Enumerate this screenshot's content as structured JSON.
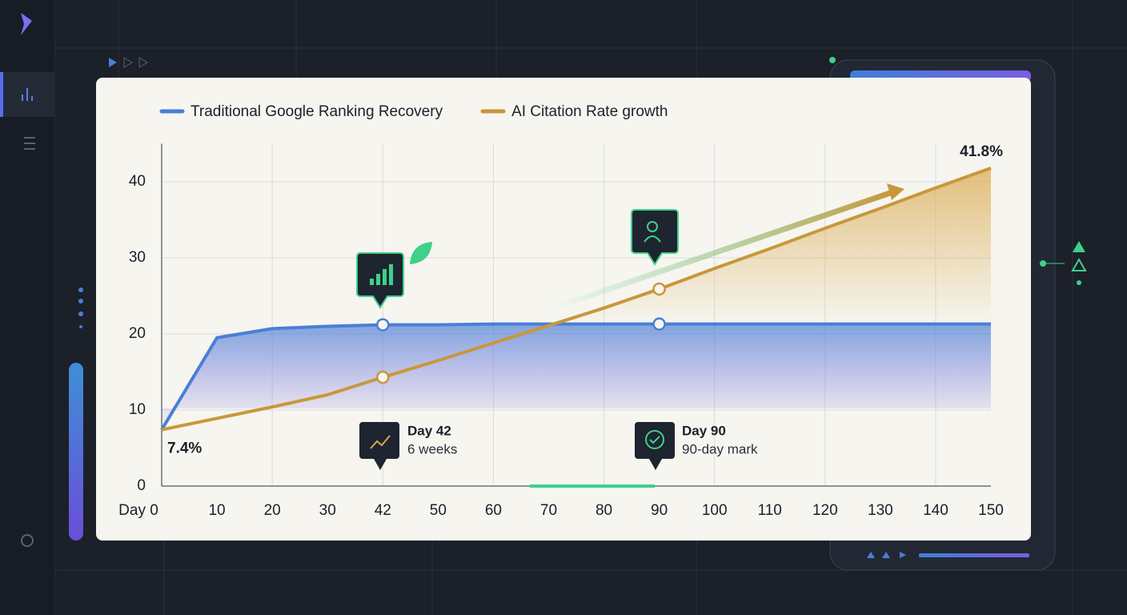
{
  "chart_data": {
    "type": "line",
    "categories": [
      "Day 0",
      "10",
      "20",
      "30",
      "42",
      "50",
      "60",
      "70",
      "80",
      "90",
      "100",
      "110",
      "120",
      "130",
      "140",
      "150"
    ],
    "series": [
      {
        "name": "Traditional Google Ranking Recovery",
        "color": "#4a7fd6",
        "values": [
          7.4,
          19.5,
          20.7,
          21.0,
          21.2,
          21.2,
          21.3,
          21.3,
          21.3,
          21.3,
          21.3,
          21.3,
          21.3,
          21.3,
          21.3,
          21.3
        ]
      },
      {
        "name": "AI Citation Rate growth",
        "color": "#c9973a",
        "values": [
          7.4,
          8.9,
          10.4,
          12.0,
          14.3,
          16.5,
          18.8,
          21.1,
          23.4,
          25.9,
          28.6,
          31.2,
          33.9,
          36.5,
          39.2,
          41.8
        ],
        "value_labels": [
          "7.4%",
          null,
          null,
          null,
          null,
          null,
          null,
          null,
          null,
          null,
          null,
          null,
          null,
          null,
          null,
          "41.8%"
        ]
      }
    ],
    "ylim": [
      0,
      45
    ],
    "yticks": [
      0,
      10,
      20,
      30,
      40
    ],
    "grid": true,
    "annotations": [
      {
        "title": "Day 42",
        "text": "6 weeks"
      },
      {
        "title": "Day 90",
        "text": "90-day mark"
      }
    ]
  }
}
